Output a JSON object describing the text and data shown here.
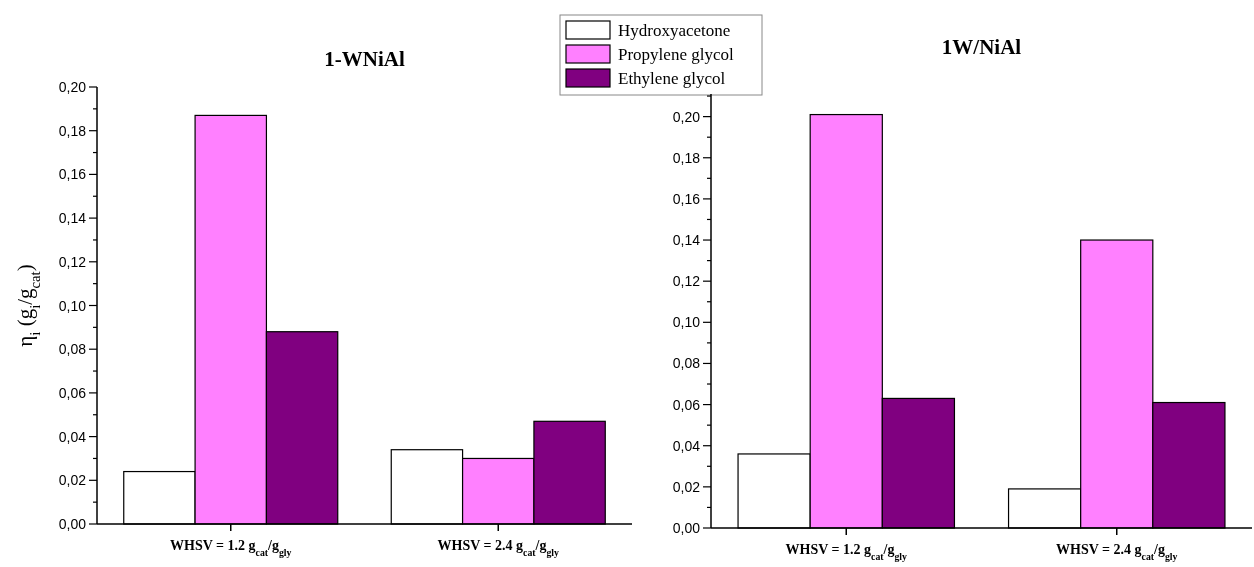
{
  "chart_data": [
    {
      "type": "bar",
      "title": "1-WNiAl",
      "ylabel": "η$_{i}$ (g$_{i}$/g$_{cat}$)",
      "categories": [
        "WHSV = 1.2  g$_{cat}$/g$_{gly}$",
        "WHSV = 2.4  g$_{cat}$/g$_{gly}$"
      ],
      "series": [
        {
          "name": "Hydroxyacetone",
          "color": "#ffffff",
          "values": [
            0.024,
            0.034
          ]
        },
        {
          "name": "Propylene glycol",
          "color": "#ff80ff",
          "values": [
            0.187,
            0.03
          ]
        },
        {
          "name": "Ethylene glycol",
          "color": "#800080",
          "values": [
            0.088,
            0.047
          ]
        }
      ],
      "ylim": [
        0,
        0.2
      ],
      "yticks": [
        {
          "value": 0,
          "label": "0,00"
        },
        {
          "value": 0.01,
          "label": null
        },
        {
          "value": 0.02,
          "label": "0,02"
        },
        {
          "value": 0.03,
          "label": null
        },
        {
          "value": 0.04,
          "label": "0,04"
        },
        {
          "value": 0.05,
          "label": null
        },
        {
          "value": 0.06,
          "label": "0,06"
        },
        {
          "value": 0.07,
          "label": null
        },
        {
          "value": 0.08,
          "label": "0,08"
        },
        {
          "value": 0.09,
          "label": null
        },
        {
          "value": 0.1,
          "label": "0,10"
        },
        {
          "value": 0.11,
          "label": null
        },
        {
          "value": 0.12,
          "label": "0,12"
        },
        {
          "value": 0.13,
          "label": null
        },
        {
          "value": 0.14,
          "label": "0,14"
        },
        {
          "value": 0.15,
          "label": null
        },
        {
          "value": 0.16,
          "label": "0,16"
        },
        {
          "value": 0.17,
          "label": null
        },
        {
          "value": 0.18,
          "label": "0,18"
        },
        {
          "value": 0.19,
          "label": null
        },
        {
          "value": 0.2,
          "label": "0,20"
        }
      ],
      "legend": "top right"
    },
    {
      "type": "bar",
      "title": "1W/NiAl",
      "categories": [
        "WHSV = 1.2  g$_{cat}$/g$_{gly}$",
        "WHSV = 2.4  g$_{cat}$/g$_{gly}$"
      ],
      "series": [
        {
          "color": "#ffffff",
          "values": [
            0.036,
            0.019
          ]
        },
        {
          "color": "#ff80ff",
          "values": [
            0.201,
            0.14
          ]
        },
        {
          "color": "#800080",
          "values": [
            0.063,
            0.061
          ]
        }
      ],
      "ylim": [
        0,
        0.211
      ],
      "yticks": [
        {
          "value": 0,
          "label": "0,00"
        },
        {
          "value": 0.01,
          "label": null
        },
        {
          "value": 0.02,
          "label": "0,02"
        },
        {
          "value": 0.03,
          "label": null
        },
        {
          "value": 0.04,
          "label": "0,04"
        },
        {
          "value": 0.05,
          "label": null
        },
        {
          "value": 0.06,
          "label": "0,06"
        },
        {
          "value": 0.07,
          "label": null
        },
        {
          "value": 0.08,
          "label": "0,08"
        },
        {
          "value": 0.09,
          "label": null
        },
        {
          "value": 0.1,
          "label": "0,10"
        },
        {
          "value": 0.11,
          "label": null
        },
        {
          "value": 0.12,
          "label": "0,12"
        },
        {
          "value": 0.13,
          "label": null
        },
        {
          "value": 0.14,
          "label": "0,14"
        },
        {
          "value": 0.15,
          "label": null
        },
        {
          "value": 0.16,
          "label": "0,16"
        },
        {
          "value": 0.17,
          "label": null
        },
        {
          "value": 0.18,
          "label": "0,18"
        },
        {
          "value": 0.19,
          "label": null
        },
        {
          "value": 0.2,
          "label": "0,20"
        },
        {
          "value": 0.21,
          "label": null
        }
      ]
    }
  ]
}
